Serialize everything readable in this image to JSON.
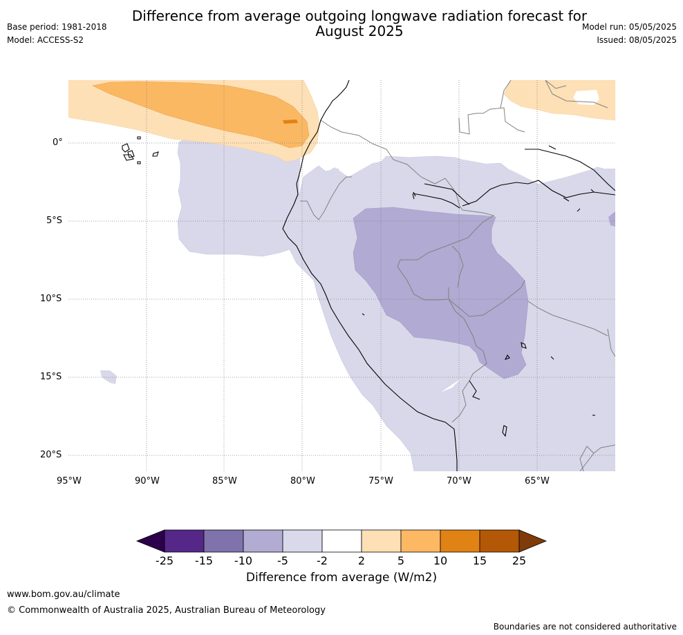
{
  "header": {
    "title": "Difference from average outgoing longwave radiation forecast for\nAugust 2025",
    "base_period": "Base period: 1981-2018",
    "model": "Model: ACCESS-S2",
    "model_run": "Model run: 05/05/2025",
    "issued": "Issued: 08/05/2025"
  },
  "map": {
    "lat_labels": [
      "0°",
      "5°S",
      "10°S",
      "15°S",
      "20°S"
    ],
    "lon_labels": [
      "95°W",
      "90°W",
      "85°W",
      "80°W",
      "75°W",
      "70°W",
      "65°W"
    ],
    "colors": {
      "ocean_land_neutral": "#ffffff",
      "neg_2_5": "#d8d8ea",
      "neg_5_10": "#b1aad2",
      "pos_2_5": "#fee0b6",
      "pos_5_10": "#fbb862",
      "pos_10_15": "#e08214",
      "coast": "#000000",
      "border": "#808080",
      "grid": "#808080"
    }
  },
  "colorbar": {
    "ticks": [
      "-25",
      "-15",
      "-10",
      "-5",
      "-2",
      "2",
      "5",
      "10",
      "15",
      "25"
    ],
    "colors": [
      "#2d004b",
      "#542788",
      "#8073ac",
      "#b2abd2",
      "#d8daeb",
      "#ffffff",
      "#fee0b6",
      "#fdb863",
      "#e08214",
      "#b35806",
      "#7f3b08"
    ],
    "label": "Difference from average (W/m2)"
  },
  "footer": {
    "url": "www.bom.gov.au/climate",
    "copyright": "© Commonwealth of Australia 2025, Australian Bureau of Meteorology",
    "disclaimer": "Boundaries are not considered authoritative"
  }
}
